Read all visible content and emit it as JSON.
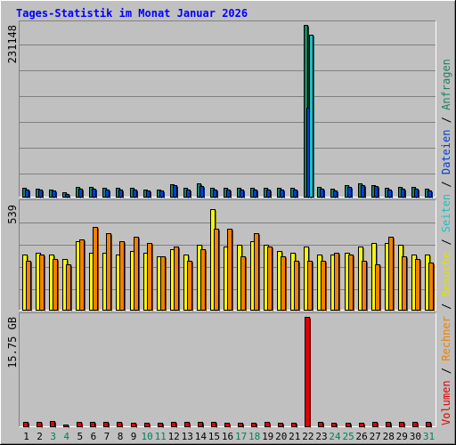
{
  "chart_data": {
    "type": "bar",
    "title": "Tages-Statistik im Monat Januar 2026",
    "categories": [
      "1",
      "2",
      "3",
      "4",
      "5",
      "6",
      "7",
      "8",
      "9",
      "10",
      "11",
      "12",
      "13",
      "14",
      "15",
      "16",
      "17",
      "18",
      "19",
      "20",
      "21",
      "22",
      "23",
      "24",
      "25",
      "26",
      "27",
      "28",
      "29",
      "30",
      "31"
    ],
    "weekend_days": [
      "3",
      "4",
      "10",
      "11",
      "17",
      "18",
      "24",
      "25",
      "31"
    ],
    "panels": [
      {
        "name": "anfragen-dateien",
        "ymax_label": "231148",
        "ylim": [
          0,
          231148
        ],
        "series": [
          {
            "name": "Anfragen",
            "color": "#208060",
            "values": [
              11500,
              10200,
              9800,
              6000,
              12700,
              12700,
              11500,
              11500,
              11500,
              9800,
              9000,
              17300,
              11500,
              18400,
              11500,
              11500,
              11500,
              11500,
              11500,
              11500,
              11500,
              231148,
              12700,
              10200,
              15000,
              18400,
              16100,
              11500,
              12700,
              12700,
              10200
            ]
          },
          {
            "name": "Dateien",
            "color": "#0040d0",
            "values": [
              9800,
              9000,
              8000,
              4000,
              10800,
              10800,
              9800,
              9800,
              9800,
              8000,
              7800,
              15500,
              9800,
              13800,
              9800,
              9800,
              9800,
              9800,
              9800,
              9800,
              9800,
              120000,
              10800,
              8000,
              13200,
              16100,
              13800,
              9800,
              10800,
              10800,
              8000
            ]
          },
          {
            "name": "Seiten",
            "color": "#20c0c0",
            "values": [
              0,
              0,
              0,
              0,
              0,
              0,
              0,
              0,
              0,
              0,
              0,
              0,
              0,
              0,
              0,
              0,
              0,
              0,
              0,
              0,
              0,
              218000,
              0,
              0,
              0,
              0,
              0,
              0,
              0,
              0,
              0
            ]
          }
        ]
      },
      {
        "name": "besuche-rechner",
        "ymax_label": "539",
        "ylim": [
          0,
          539
        ],
        "series": [
          {
            "name": "Besuche",
            "color": "#f8f800",
            "values": [
              280,
              290,
              280,
              260,
              350,
              290,
              290,
              280,
              300,
              290,
              270,
              310,
              280,
              330,
              510,
              320,
              330,
              350,
              330,
              300,
              290,
              320,
              280,
              280,
              290,
              320,
              340,
              340,
              330,
              280,
              280
            ]
          },
          {
            "name": "Rechner",
            "color": "#f08000",
            "values": [
              250,
              280,
              260,
              230,
              360,
              420,
              390,
              350,
              370,
              340,
              270,
              320,
              250,
              310,
              410,
              410,
              270,
              390,
              320,
              270,
              250,
              250,
              250,
              290,
              280,
              250,
              230,
              370,
              270,
              260,
              240
            ]
          }
        ]
      },
      {
        "name": "volumen",
        "ymax_label": "15.75 GB",
        "ylim": [
          0,
          15.75
        ],
        "series": [
          {
            "name": "Volumen",
            "color": "#e00000",
            "values": [
              0.6,
              0.6,
              0.8,
              0.3,
              0.6,
              0.6,
              0.6,
              0.6,
              0.5,
              0.5,
              0.5,
              0.6,
              0.6,
              0.7,
              0.6,
              0.5,
              0.5,
              0.5,
              0.7,
              0.5,
              0.5,
              15.75,
              0.6,
              0.5,
              0.5,
              0.5,
              0.6,
              0.6,
              0.6,
              0.7,
              0.6
            ]
          }
        ]
      }
    ],
    "legend": {
      "placement": "right-vertical",
      "separator": " / ",
      "entries": [
        {
          "label": "Volumen",
          "color": "#e00000"
        },
        {
          "label": "Rechner",
          "color": "#f08000"
        },
        {
          "label": "Besuche",
          "color": "#e0e000"
        },
        {
          "label": "Seiten",
          "color": "#20c0c0"
        },
        {
          "label": "Dateien",
          "color": "#0040d0"
        },
        {
          "label": "Anfragen",
          "color": "#208060"
        }
      ]
    },
    "colors": {
      "background": "#c0c0c0",
      "title": "#0000ff",
      "weekday_label": "#000000",
      "weekend_label": "#00805c",
      "separator": "#000000"
    }
  }
}
